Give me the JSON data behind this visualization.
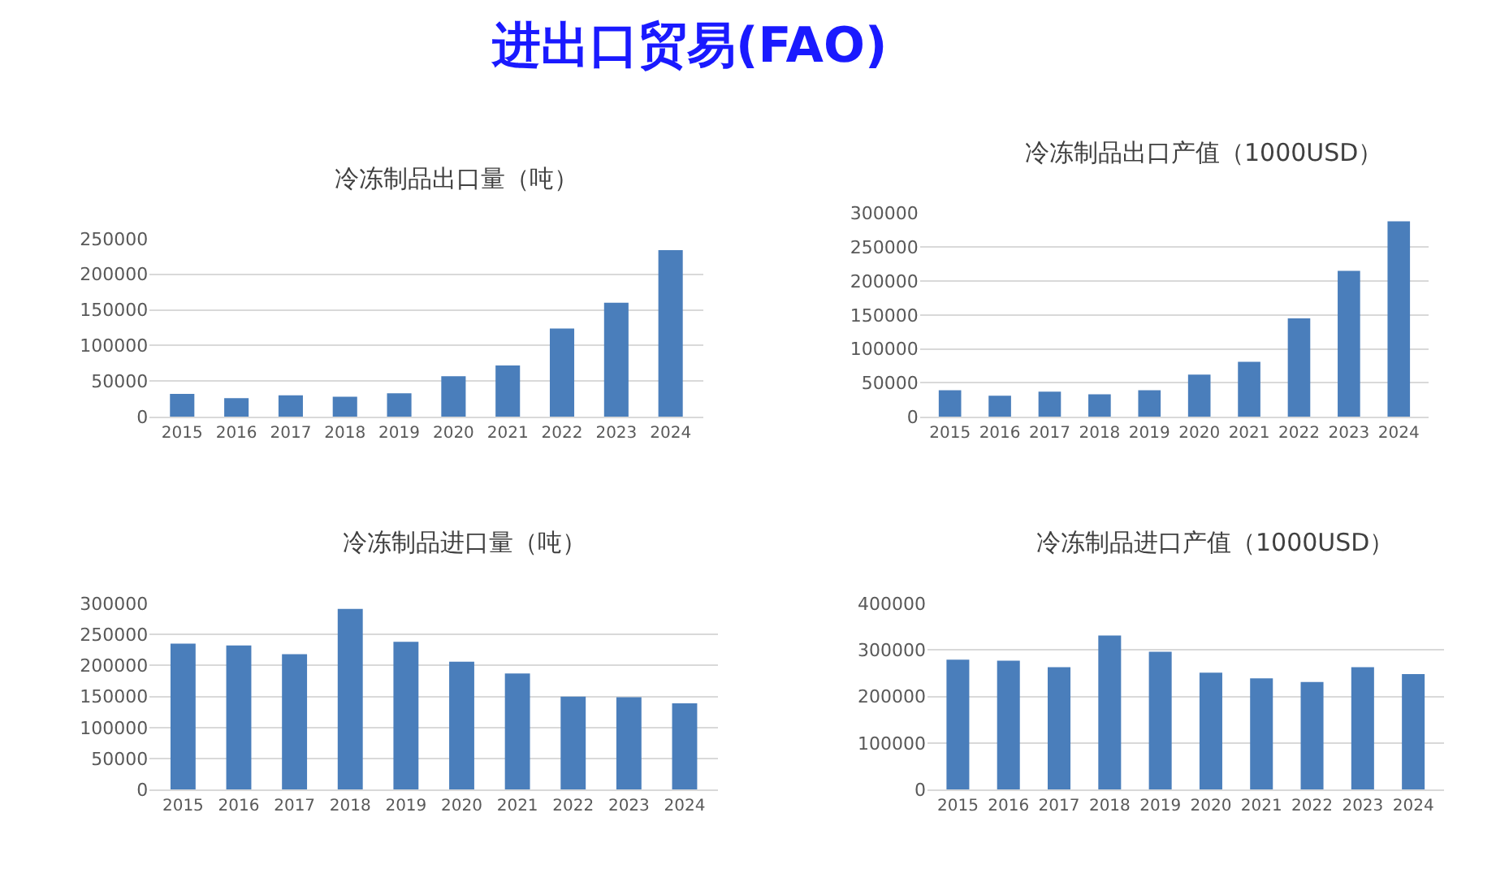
{
  "chart_data": [
    {
      "type": "other",
      "title": "进出口贸易(FAO)"
    },
    {
      "type": "bar",
      "title": "冷冻制品出口量（吨）",
      "categories": [
        "2015",
        "2016",
        "2017",
        "2018",
        "2019",
        "2020",
        "2021",
        "2022",
        "2023",
        "2024"
      ],
      "values": [
        32000,
        26000,
        30000,
        28000,
        33000,
        57000,
        72000,
        124000,
        160000,
        234000
      ],
      "color": "#4a7ebb",
      "ylim": [
        0,
        250000
      ],
      "yticks": [
        0,
        50000,
        100000,
        150000,
        200000,
        250000
      ],
      "grid": "y"
    },
    {
      "type": "bar",
      "title": "冷冻制品出口产值（1000USD）",
      "categories": [
        "2015",
        "2016",
        "2017",
        "2018",
        "2019",
        "2020",
        "2021",
        "2022",
        "2023",
        "2024"
      ],
      "values": [
        39000,
        31000,
        37000,
        33000,
        39000,
        62000,
        81000,
        145000,
        215000,
        288000
      ],
      "color": "#4a7ebb",
      "ylim": [
        0,
        300000
      ],
      "yticks": [
        0,
        50000,
        100000,
        150000,
        200000,
        250000,
        300000
      ],
      "grid": "y"
    },
    {
      "type": "bar",
      "title": "冷冻制品进口量（吨）",
      "categories": [
        "2015",
        "2016",
        "2017",
        "2018",
        "2019",
        "2020",
        "2021",
        "2022",
        "2023",
        "2024"
      ],
      "values": [
        235000,
        232000,
        218000,
        291000,
        238000,
        206000,
        187000,
        150000,
        149000,
        139000
      ],
      "color": "#4a7ebb",
      "ylim": [
        0,
        300000
      ],
      "yticks": [
        0,
        50000,
        100000,
        150000,
        200000,
        250000,
        300000
      ],
      "grid": "y"
    },
    {
      "type": "bar",
      "title": "冷冻制品进口产值（1000USD）",
      "categories": [
        "2015",
        "2016",
        "2017",
        "2018",
        "2019",
        "2020",
        "2021",
        "2022",
        "2023",
        "2024"
      ],
      "values": [
        279000,
        277000,
        263000,
        331000,
        296000,
        251000,
        239000,
        231000,
        263000,
        248000
      ],
      "color": "#4a7ebb",
      "ylim": [
        0,
        400000
      ],
      "yticks": [
        0,
        100000,
        200000,
        300000,
        400000
      ],
      "grid": "y"
    }
  ]
}
